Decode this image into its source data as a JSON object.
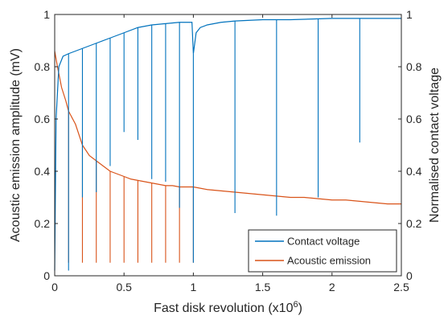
{
  "chart_data": {
    "type": "line",
    "title": "",
    "xlabel": "Fast disk revolution (x10",
    "xlabel_superscript": "6",
    "xlabel_suffix": ")",
    "ylabel_left": "Acoustic emission amplitude (mV)",
    "ylabel_right": "Normalised contact voltage",
    "xlim": [
      0,
      2.5
    ],
    "ylim_left": [
      0,
      1
    ],
    "ylim_right": [
      0,
      1
    ],
    "x_ticks": [
      "0",
      "0.5",
      "1",
      "1.5",
      "2",
      "2.5"
    ],
    "y_ticks_left": [
      "0",
      "0.2",
      "0.4",
      "0.6",
      "0.8",
      "1"
    ],
    "y_ticks_right": [
      "0",
      "0.2",
      "0.4",
      "0.6",
      "0.8",
      "1"
    ],
    "grid": false,
    "legend_position": "bottom-right",
    "series": [
      {
        "name": "Contact voltage",
        "axis": "right",
        "color": "#0072BD",
        "x": [
          0,
          0.01,
          0.03,
          0.06,
          0.1,
          0.15,
          0.2,
          0.3,
          0.4,
          0.5,
          0.6,
          0.7,
          0.8,
          0.9,
          0.99,
          1.0,
          1.02,
          1.05,
          1.1,
          1.2,
          1.3,
          1.5,
          1.7,
          2.0,
          2.2,
          2.5
        ],
        "values": [
          0.02,
          0.6,
          0.8,
          0.84,
          0.85,
          0.86,
          0.87,
          0.89,
          0.91,
          0.93,
          0.95,
          0.96,
          0.965,
          0.97,
          0.97,
          0.85,
          0.93,
          0.95,
          0.96,
          0.97,
          0.975,
          0.98,
          0.98,
          0.985,
          0.985,
          0.985
        ],
        "dips": [
          {
            "x": 0.1,
            "min": 0.02
          },
          {
            "x": 0.2,
            "min": 0.3
          },
          {
            "x": 0.3,
            "min": 0.32
          },
          {
            "x": 0.4,
            "min": 0.42
          },
          {
            "x": 0.5,
            "min": 0.55
          },
          {
            "x": 0.6,
            "min": 0.52
          },
          {
            "x": 0.7,
            "min": 0.37
          },
          {
            "x": 0.8,
            "min": 0.36
          },
          {
            "x": 0.9,
            "min": 0.26
          },
          {
            "x": 1.0,
            "min": 0.05
          },
          {
            "x": 1.3,
            "min": 0.24
          },
          {
            "x": 1.6,
            "min": 0.23
          },
          {
            "x": 1.9,
            "min": 0.3
          },
          {
            "x": 2.2,
            "min": 0.51
          }
        ]
      },
      {
        "name": "Acoustic emission",
        "axis": "left",
        "color": "#D95319",
        "x": [
          0,
          0.02,
          0.05,
          0.08,
          0.1,
          0.15,
          0.2,
          0.25,
          0.3,
          0.35,
          0.4,
          0.45,
          0.5,
          0.55,
          0.6,
          0.65,
          0.7,
          0.75,
          0.8,
          0.85,
          0.9,
          0.95,
          1.0,
          1.1,
          1.2,
          1.3,
          1.4,
          1.5,
          1.6,
          1.7,
          1.8,
          1.9,
          2.0,
          2.1,
          2.2,
          2.3,
          2.4,
          2.5
        ],
        "values": [
          0.86,
          0.8,
          0.72,
          0.67,
          0.63,
          0.58,
          0.5,
          0.46,
          0.44,
          0.42,
          0.4,
          0.39,
          0.38,
          0.37,
          0.365,
          0.36,
          0.355,
          0.35,
          0.345,
          0.345,
          0.34,
          0.34,
          0.34,
          0.33,
          0.325,
          0.32,
          0.315,
          0.31,
          0.305,
          0.3,
          0.3,
          0.295,
          0.29,
          0.29,
          0.285,
          0.28,
          0.275,
          0.275
        ],
        "dips": [
          {
            "x": 0.1,
            "min": 0.05
          },
          {
            "x": 0.2,
            "min": 0.05
          },
          {
            "x": 0.3,
            "min": 0.05
          },
          {
            "x": 0.4,
            "min": 0.05
          },
          {
            "x": 0.5,
            "min": 0.05
          },
          {
            "x": 0.6,
            "min": 0.05
          },
          {
            "x": 0.7,
            "min": 0.05
          },
          {
            "x": 0.8,
            "min": 0.05
          },
          {
            "x": 0.9,
            "min": 0.05
          },
          {
            "x": 1.0,
            "min": 0.05
          }
        ]
      }
    ]
  }
}
